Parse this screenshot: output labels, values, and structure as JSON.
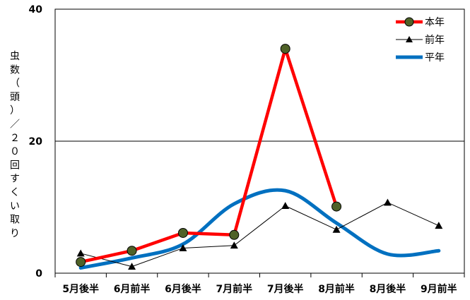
{
  "chart_data": {
    "type": "line",
    "title": "",
    "xlabel": "",
    "ylabel": "虫数（頭）／２０回すくい取り",
    "ylim": [
      0,
      40
    ],
    "yticks": [
      0,
      20,
      40
    ],
    "categories": [
      "5月後半",
      "6月前半",
      "6月後半",
      "7月前半",
      "7月後半",
      "8月前半",
      "8月後半",
      "9月前半"
    ],
    "gridlines_y": [
      20
    ],
    "legend_position": "top-right",
    "series": [
      {
        "name": "本年",
        "color": "#ff0000",
        "marker": "circle",
        "marker_color": "#4f6228",
        "style": "thick",
        "values": [
          1.7,
          3.4,
          6.1,
          5.8,
          34.0,
          10.1,
          null,
          null
        ]
      },
      {
        "name": "前年",
        "color": "#000000",
        "marker": "triangle",
        "style": "thin",
        "values": [
          3.0,
          1.0,
          3.8,
          4.2,
          10.2,
          6.6,
          10.7,
          7.2
        ]
      },
      {
        "name": "平年",
        "color": "#0070c0",
        "marker": "none",
        "style": "smooth",
        "values": [
          0.8,
          2.3,
          4.4,
          10.5,
          12.5,
          7.6,
          2.9,
          3.4
        ]
      }
    ]
  }
}
